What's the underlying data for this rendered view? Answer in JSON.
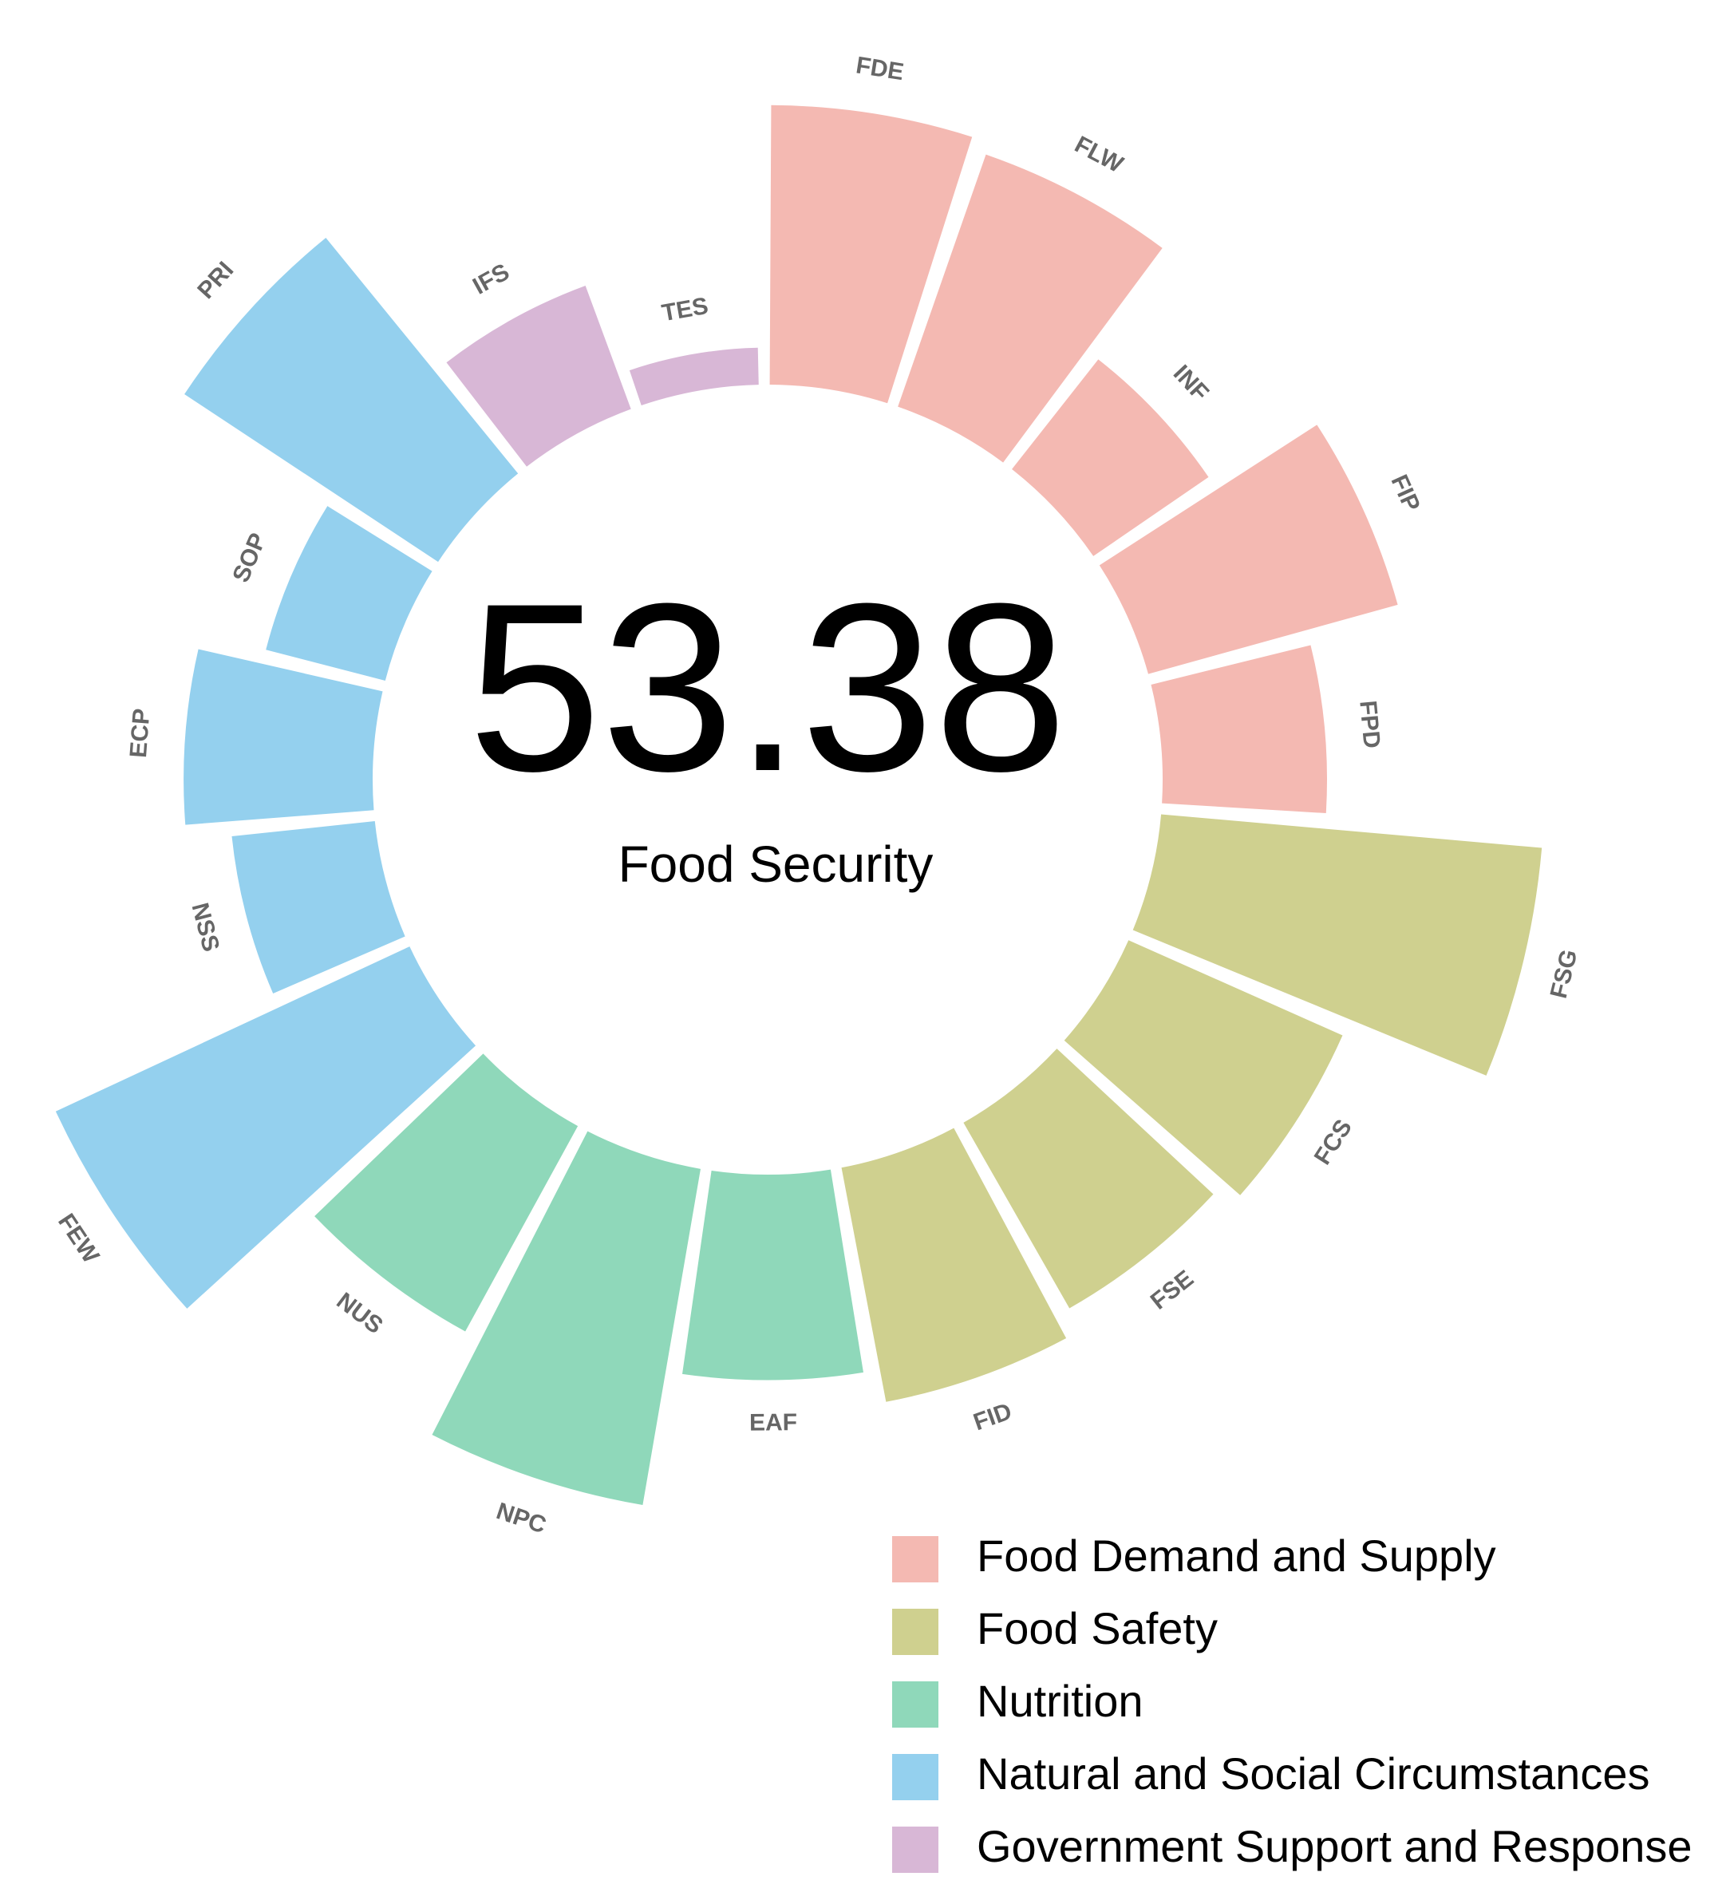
{
  "chart_data": {
    "type": "radial-bar",
    "center_value": "53.38",
    "center_label": "Food Security",
    "ylim": [
      0,
      100
    ],
    "bars": [
      {
        "label": "FDE",
        "value": 68,
        "category": "Food Demand and Supply"
      },
      {
        "label": "FLW",
        "value": 65,
        "category": "Food Demand and Supply"
      },
      {
        "label": "INF",
        "value": 34,
        "category": "Food Demand and Supply"
      },
      {
        "label": "FIP",
        "value": 63,
        "category": "Food Demand and Supply"
      },
      {
        "label": "FPD",
        "value": 40,
        "category": "Food Demand and Supply"
      },
      {
        "label": "FSG",
        "value": 93,
        "category": "Food Safety"
      },
      {
        "label": "FCS",
        "value": 57,
        "category": "Food Safety"
      },
      {
        "label": "FSE",
        "value": 52,
        "category": "Food Safety"
      },
      {
        "label": "FID",
        "value": 58,
        "category": "Food Safety"
      },
      {
        "label": "EAF",
        "value": 50,
        "category": "Nutrition"
      },
      {
        "label": "NPC",
        "value": 83,
        "category": "Nutrition"
      },
      {
        "label": "NUS",
        "value": 57,
        "category": "Nutrition"
      },
      {
        "label": "FEW",
        "value": 95,
        "category": "Natural and Social Circumstances"
      },
      {
        "label": "NSS",
        "value": 35,
        "category": "Natural and Social Circumstances"
      },
      {
        "label": "ECP",
        "value": 46,
        "category": "Natural and Social Circumstances"
      },
      {
        "label": "SOP",
        "value": 30,
        "category": "Natural and Social Circumstances"
      },
      {
        "label": "PRI",
        "value": 74,
        "category": "Natural and Social Circumstances"
      },
      {
        "label": "IFS",
        "value": 32,
        "category": "Government Support and Response"
      },
      {
        "label": "TES",
        "value": 9,
        "category": "Government Support and Response"
      }
    ],
    "legend": [
      {
        "name": "Food Demand and Supply",
        "color": "#F4B9B2"
      },
      {
        "name": "Food Safety",
        "color": "#CFD08F"
      },
      {
        "name": "Nutrition",
        "color": "#8FD8BA"
      },
      {
        "name": "Natural and Social Circumstances",
        "color": "#94D0EE"
      },
      {
        "name": "Government Support and Response",
        "color": "#D8B7D6"
      }
    ]
  }
}
